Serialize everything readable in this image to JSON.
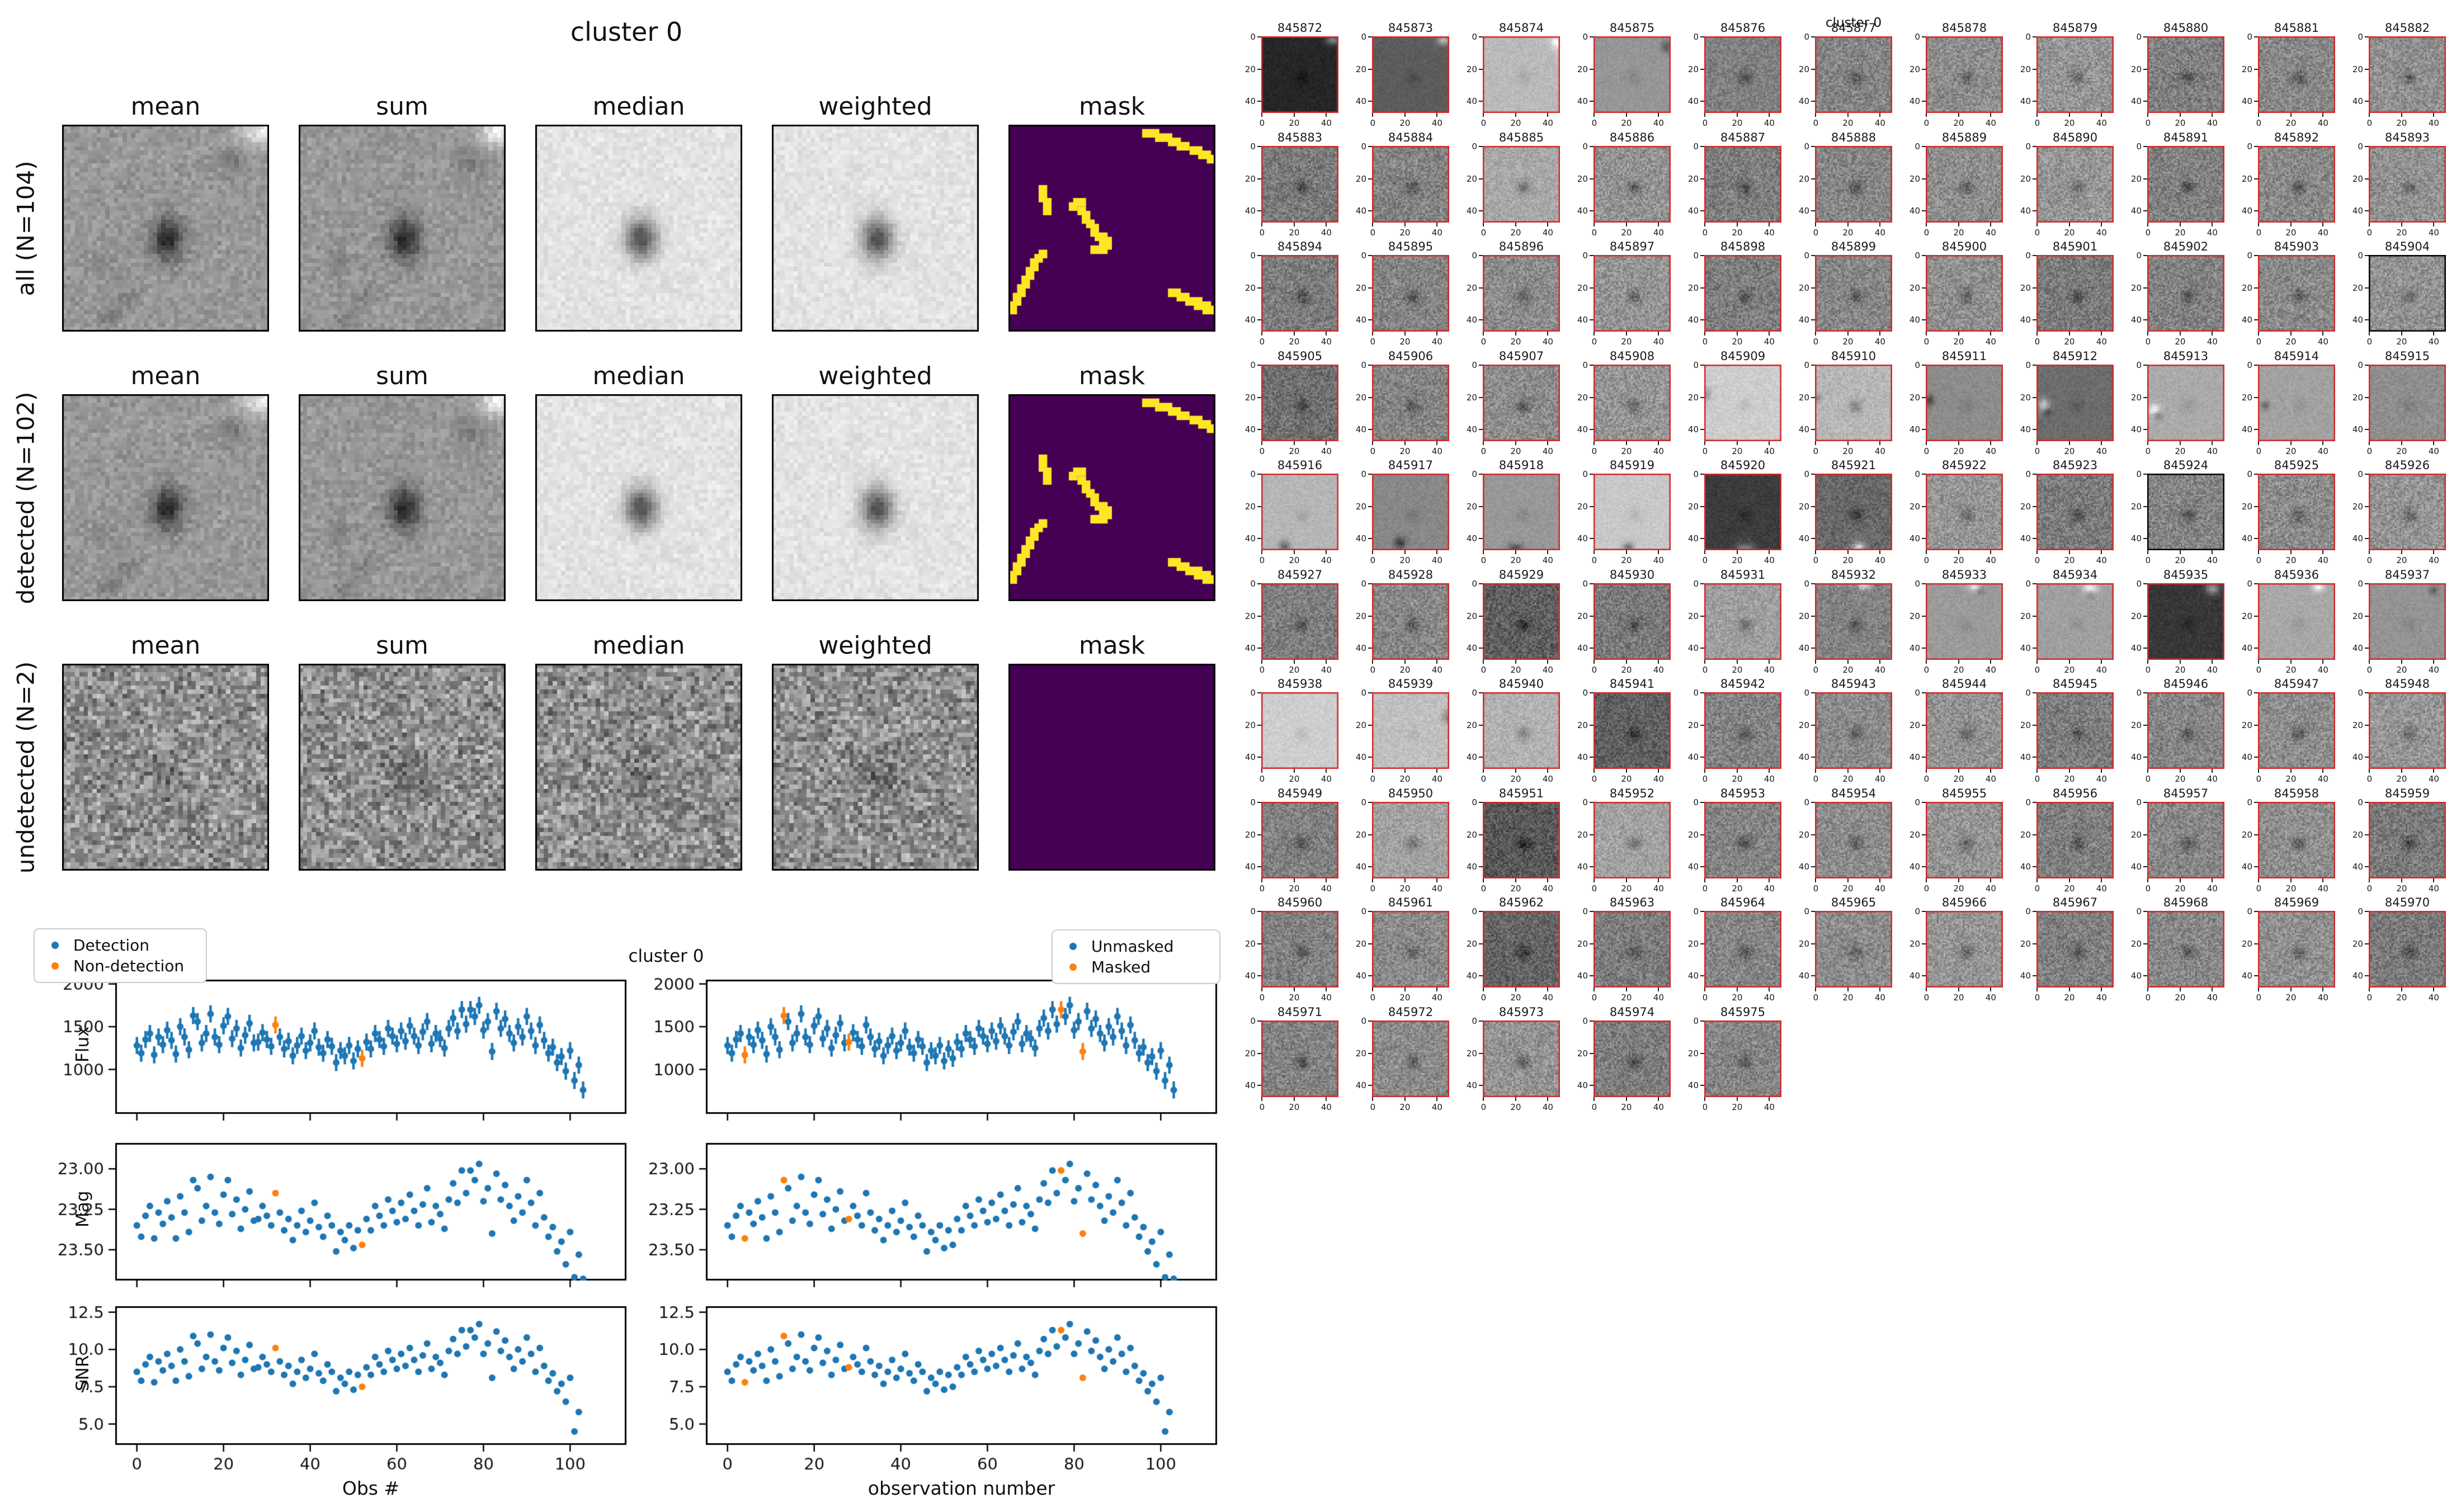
{
  "figure_cutouts": {
    "title": "cluster 0",
    "columns": [
      "mean",
      "sum",
      "median",
      "weighted",
      "mask"
    ],
    "rows": [
      {
        "label": "all (N=104)"
      },
      {
        "label": "detected (N=102)"
      },
      {
        "label": "undetected (N=2)"
      }
    ],
    "mask_colors": {
      "background": "#440154",
      "masked": "#fde725"
    },
    "mask_rects": [
      [
        31,
        1,
        4,
        2
      ],
      [
        34,
        2,
        4,
        2
      ],
      [
        37,
        3,
        3,
        2
      ],
      [
        39,
        4,
        3,
        2
      ],
      [
        42,
        5,
        3,
        2
      ],
      [
        44,
        6,
        3,
        2
      ],
      [
        46,
        7,
        2,
        2
      ],
      [
        7,
        14,
        2,
        4
      ],
      [
        8,
        17,
        2,
        4
      ],
      [
        15,
        17,
        3,
        2
      ],
      [
        14,
        18,
        2,
        2
      ],
      [
        16,
        19,
        2,
        2
      ],
      [
        17,
        20,
        2,
        3
      ],
      [
        18,
        22,
        2,
        2
      ],
      [
        19,
        23,
        2,
        3
      ],
      [
        20,
        25,
        3,
        2
      ],
      [
        21,
        26,
        3,
        3
      ],
      [
        19,
        28,
        4,
        2
      ],
      [
        7,
        29,
        2,
        2
      ],
      [
        6,
        30,
        2,
        2
      ],
      [
        5,
        31,
        2,
        3
      ],
      [
        4,
        33,
        2,
        3
      ],
      [
        3,
        35,
        2,
        3
      ],
      [
        2,
        37,
        2,
        3
      ],
      [
        1,
        39,
        2,
        3
      ],
      [
        0,
        41,
        2,
        3
      ],
      [
        37,
        38,
        3,
        2
      ],
      [
        39,
        39,
        3,
        2
      ],
      [
        41,
        40,
        4,
        2
      ],
      [
        43,
        41,
        4,
        2
      ],
      [
        45,
        42,
        3,
        2
      ]
    ]
  },
  "figure_lightcurves": {
    "suptitle": "cluster 0",
    "xlabel_left": "Obs #",
    "xlabel_right": "observation number",
    "ylabels": [
      "Flux",
      "Mag",
      "SNR"
    ],
    "legend_left": [
      {
        "label": "Detection",
        "color": "#1f77b4"
      },
      {
        "label": "Non-detection",
        "color": "#ff7f0e"
      }
    ],
    "legend_right": [
      {
        "label": "Unmasked",
        "color": "#1f77b4"
      },
      {
        "label": "Masked",
        "color": "#ff7f0e"
      }
    ]
  },
  "chart_data": {
    "type": "scatter",
    "title": "cluster 0",
    "n_points": 104,
    "x_start": 0,
    "x_step": 1,
    "xlim": [
      -5,
      113
    ],
    "xticks": [
      0,
      20,
      40,
      60,
      80,
      100
    ],
    "panels": [
      {
        "ylabel": "Flux",
        "yticks": [
          2000,
          1500,
          1000
        ],
        "ytick_labels": [
          "2000",
          "1500",
          "1000"
        ],
        "ylim_top": 2050,
        "ylim_bottom": 480,
        "errorbar": true
      },
      {
        "ylabel": "Mag",
        "yticks": [
          23.0,
          23.25,
          23.5
        ],
        "ytick_labels": [
          "23.00",
          "23.25",
          "23.50"
        ],
        "ylim_top": 22.84,
        "ylim_bottom": 23.69,
        "errorbar": false
      },
      {
        "ylabel": "SNR",
        "yticks": [
          12.5,
          10.0,
          7.5,
          5.0
        ],
        "ytick_labels": [
          "12.5",
          "10.0",
          "7.5",
          "5.0"
        ],
        "ylim_top": 12.9,
        "ylim_bottom": 3.6,
        "errorbar": false
      }
    ],
    "series": {
      "flux": [
        1280,
        1190,
        1350,
        1420,
        1170,
        1380,
        1290,
        1460,
        1340,
        1180,
        1500,
        1380,
        1230,
        1630,
        1560,
        1310,
        1420,
        1650,
        1380,
        1290,
        1510,
        1620,
        1360,
        1480,
        1250,
        1400,
        1540,
        1310,
        1320,
        1430,
        1350,
        1270,
        1520,
        1380,
        1240,
        1330,
        1160,
        1280,
        1390,
        1220,
        1310,
        1450,
        1260,
        1190,
        1350,
        1270,
        1080,
        1220,
        1160,
        1280,
        1100,
        1240,
        1130,
        1320,
        1240,
        1420,
        1350,
        1270,
        1480,
        1390,
        1300,
        1450,
        1330,
        1510,
        1390,
        1280,
        1440,
        1560,
        1300,
        1420,
        1360,
        1250,
        1480,
        1600,
        1450,
        1700,
        1530,
        1700,
        1620,
        1750,
        1460,
        1560,
        1210,
        1680,
        1480,
        1590,
        1420,
        1310,
        1500,
        1380,
        1620,
        1450,
        1280,
        1520,
        1340,
        1190,
        1260,
        1080,
        1150,
        980,
        1220,
        870,
        1050,
        760
      ],
      "flux_err": 100,
      "mag": [
        23.35,
        23.42,
        23.29,
        23.23,
        23.43,
        23.27,
        23.34,
        23.2,
        23.3,
        23.43,
        23.17,
        23.27,
        23.39,
        23.07,
        23.12,
        23.32,
        23.23,
        23.05,
        23.27,
        23.34,
        23.16,
        23.07,
        23.28,
        23.19,
        23.37,
        23.25,
        23.14,
        23.32,
        23.31,
        23.23,
        23.29,
        23.35,
        23.15,
        23.27,
        23.38,
        23.31,
        23.44,
        23.35,
        23.26,
        23.39,
        23.32,
        23.21,
        23.36,
        23.42,
        23.29,
        23.35,
        23.51,
        23.39,
        23.44,
        23.35,
        23.49,
        23.38,
        23.47,
        23.31,
        23.38,
        23.23,
        23.29,
        23.35,
        23.19,
        23.26,
        23.33,
        23.21,
        23.31,
        23.16,
        23.26,
        23.35,
        23.22,
        23.12,
        23.33,
        23.23,
        23.28,
        23.37,
        23.19,
        23.09,
        23.21,
        23.01,
        23.15,
        23.01,
        23.07,
        22.97,
        23.2,
        23.12,
        23.4,
        23.03,
        23.19,
        23.1,
        23.23,
        23.32,
        23.17,
        23.27,
        23.07,
        23.21,
        23.35,
        23.15,
        23.3,
        23.42,
        23.36,
        23.51,
        23.45,
        23.59,
        23.39,
        23.67,
        23.53,
        23.68
      ],
      "snr": [
        8.5,
        7.9,
        9.0,
        9.5,
        7.8,
        9.2,
        8.6,
        9.7,
        8.9,
        7.9,
        10.0,
        9.2,
        8.2,
        10.9,
        10.4,
        8.7,
        9.5,
        11.0,
        9.2,
        8.6,
        10.1,
        10.8,
        9.1,
        9.9,
        8.3,
        9.3,
        10.3,
        8.7,
        8.8,
        9.5,
        9.0,
        8.5,
        10.1,
        9.2,
        8.3,
        8.9,
        7.7,
        8.5,
        9.3,
        8.1,
        8.7,
        9.7,
        8.4,
        7.9,
        9.0,
        8.5,
        7.2,
        8.1,
        7.7,
        8.5,
        7.3,
        8.3,
        7.5,
        8.8,
        8.3,
        9.5,
        9.0,
        8.5,
        9.9,
        9.3,
        8.7,
        9.7,
        8.9,
        10.1,
        9.3,
        8.5,
        9.6,
        10.4,
        8.7,
        9.5,
        9.1,
        8.3,
        9.9,
        10.7,
        9.7,
        11.3,
        10.2,
        11.3,
        10.8,
        11.7,
        9.7,
        10.4,
        8.1,
        11.2,
        9.9,
        10.6,
        9.5,
        8.7,
        10.0,
        9.2,
        10.8,
        9.7,
        8.5,
        10.1,
        8.9,
        7.9,
        8.4,
        7.2,
        7.7,
        6.5,
        8.1,
        4.5,
        5.8,
        3.3
      ]
    },
    "non_detection_indices": [
      32,
      52
    ],
    "masked_indices": [
      4,
      13,
      28,
      77,
      82
    ],
    "colors": {
      "primary": "#1f77b4",
      "flagged": "#ff7f0e"
    }
  },
  "figure_thumbnails": {
    "suptitle": "cluster 0",
    "xticks": [
      0,
      20,
      40
    ],
    "yticks": [
      0,
      20,
      40
    ],
    "border_color": "#d62728",
    "undetected_border_color": "#000000",
    "undetected_ids": [
      845904,
      845924
    ],
    "ids": [
      845872,
      845873,
      845874,
      845875,
      845876,
      845877,
      845878,
      845879,
      845880,
      845881,
      845882,
      845883,
      845884,
      845885,
      845886,
      845887,
      845888,
      845889,
      845890,
      845891,
      845892,
      845893,
      845894,
      845895,
      845896,
      845897,
      845898,
      845899,
      845900,
      845901,
      845902,
      845903,
      845904,
      845905,
      845906,
      845907,
      845908,
      845909,
      845910,
      845911,
      845912,
      845913,
      845914,
      845915,
      845916,
      845917,
      845918,
      845919,
      845920,
      845921,
      845922,
      845923,
      845924,
      845925,
      845926,
      845927,
      845928,
      845929,
      845930,
      845931,
      845932,
      845933,
      845934,
      845935,
      845936,
      845937,
      845938,
      845939,
      845940,
      845941,
      845942,
      845943,
      845944,
      845945,
      845946,
      845947,
      845948,
      845949,
      845950,
      845951,
      845952,
      845953,
      845954,
      845955,
      845956,
      845957,
      845958,
      845959,
      845960,
      845961,
      845962,
      845963,
      845964,
      845965,
      845966,
      845967,
      845968,
      845969,
      845970,
      845971,
      845972,
      845973,
      845974,
      845975
    ]
  }
}
